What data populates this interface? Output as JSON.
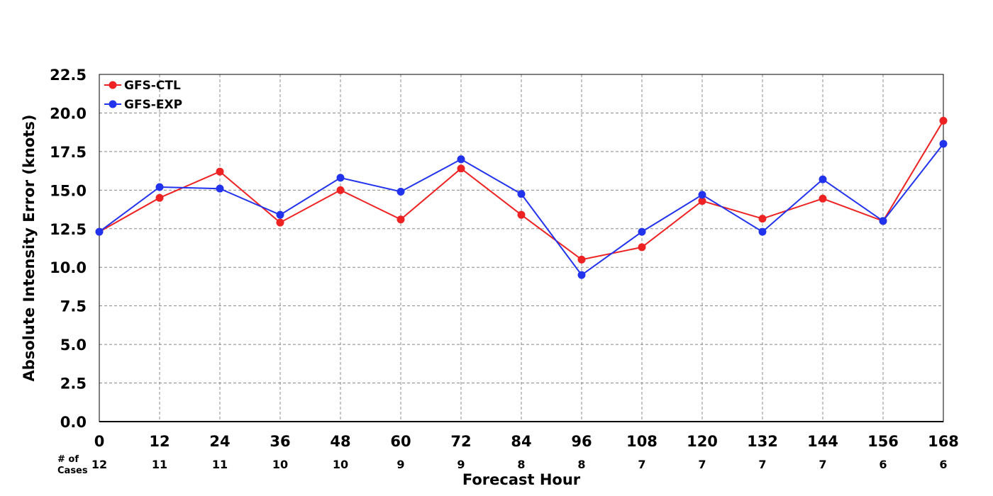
{
  "chart_data": {
    "type": "line",
    "title": "",
    "xlabel": "Forecast Hour",
    "ylabel": "Absolute Intensity Error (knots)",
    "x": [
      0,
      12,
      24,
      36,
      48,
      60,
      72,
      84,
      96,
      108,
      120,
      132,
      144,
      156,
      168
    ],
    "xlim": [
      0,
      168
    ],
    "ylim": [
      0,
      22.5
    ],
    "x_ticks": [
      "0",
      "12",
      "24",
      "36",
      "48",
      "60",
      "72",
      "84",
      "96",
      "108",
      "120",
      "132",
      "144",
      "156",
      "168"
    ],
    "y_ticks": [
      "0.0",
      "2.5",
      "5.0",
      "7.5",
      "10.0",
      "12.5",
      "15.0",
      "17.5",
      "20.0",
      "22.5"
    ],
    "grid": true,
    "legend_position": "top-left",
    "series": [
      {
        "name": "GFS-CTL",
        "color": "#ee2222",
        "values": [
          12.3,
          14.5,
          16.2,
          12.9,
          15.0,
          13.1,
          16.4,
          13.4,
          10.5,
          11.3,
          14.3,
          13.15,
          14.45,
          13.0,
          19.5
        ]
      },
      {
        "name": "GFS-EXP",
        "color": "#2233ee",
        "values": [
          12.3,
          15.2,
          15.1,
          13.4,
          15.8,
          14.9,
          17.0,
          14.75,
          9.5,
          12.3,
          14.7,
          12.3,
          15.7,
          13.0,
          18.0
        ]
      }
    ],
    "cases_label": "# of Cases",
    "cases_label_lines": [
      "# of",
      "Cases"
    ],
    "cases": [
      "12",
      "11",
      "11",
      "10",
      "10",
      "9",
      "9",
      "8",
      "8",
      "7",
      "7",
      "7",
      "7",
      "6",
      "6"
    ]
  }
}
